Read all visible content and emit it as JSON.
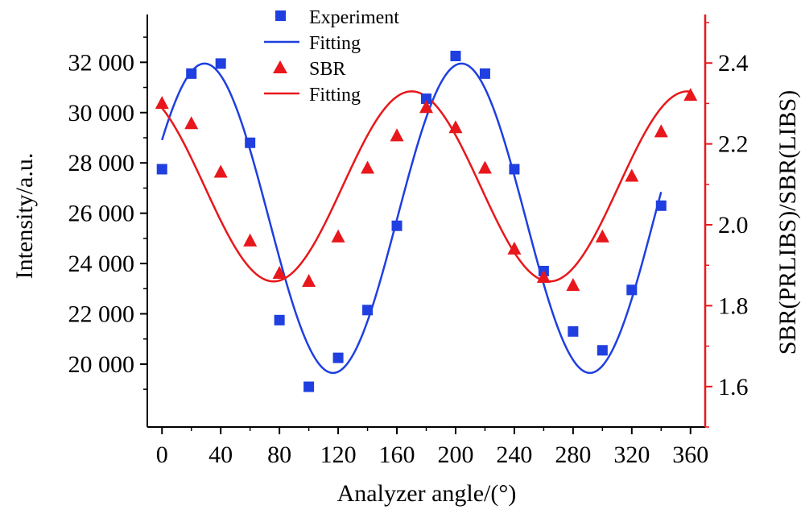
{
  "chart_data": {
    "type": "scatter",
    "xlabel": "Analyzer angle/(°)",
    "ylabel_left": "Intensity/a.u.",
    "ylabel_right": "SBR(PRLIBS)/SBR(LIBS)",
    "xlim": [
      -10,
      370
    ],
    "ylim_left": [
      17500,
      33900
    ],
    "ylim_right": [
      1.5,
      2.52
    ],
    "x_ticks": [
      0,
      40,
      80,
      120,
      160,
      200,
      240,
      280,
      320,
      360
    ],
    "x_tick_labels": [
      "0",
      "40",
      "80",
      "120",
      "160",
      "200",
      "240",
      "280",
      "320",
      "360"
    ],
    "y_left_ticks": [
      20000,
      22000,
      24000,
      26000,
      28000,
      30000,
      32000
    ],
    "y_left_tick_labels": [
      "20 000",
      "22 000",
      "24 000",
      "26 000",
      "28 000",
      "30 000",
      "32 000"
    ],
    "y_right_ticks": [
      1.6,
      1.8,
      2.0,
      2.2,
      2.4
    ],
    "y_right_tick_labels": [
      "1.6",
      "1.8",
      "2.0",
      "2.2",
      "2.4"
    ],
    "legend_position": "top-center",
    "legend": [
      {
        "label": "Experiment",
        "marker": "square",
        "color": "#1f3fe0"
      },
      {
        "label": "Fitting",
        "marker": "line",
        "color": "#1f3fe0"
      },
      {
        "label": "SBR",
        "marker": "triangle",
        "color": "#e8171b"
      },
      {
        "label": "Fitting",
        "marker": "line",
        "color": "#e8171b"
      }
    ],
    "series": [
      {
        "name": "Experiment",
        "axis": "left",
        "kind": "points",
        "marker": "square",
        "color": "#1f3fe0",
        "x": [
          0,
          20,
          40,
          60,
          80,
          100,
          120,
          140,
          160,
          180,
          200,
          220,
          240,
          260,
          280,
          300,
          320,
          340
        ],
        "y": [
          27750,
          31550,
          31950,
          28800,
          21750,
          19100,
          20250,
          22150,
          25500,
          30550,
          32250,
          31550,
          27750,
          23700,
          21300,
          20550,
          22950,
          26300
        ]
      },
      {
        "name": "Fitting",
        "axis": "left",
        "kind": "curve",
        "color": "#1f3fe0",
        "x_range": [
          0,
          340
        ],
        "model": {
          "center": 25800,
          "amplitude": 6150,
          "period_deg": 175,
          "phase_peak_deg": 29
        }
      },
      {
        "name": "SBR",
        "axis": "right",
        "kind": "points",
        "marker": "triangle",
        "color": "#e8171b",
        "x": [
          0,
          20,
          40,
          60,
          80,
          100,
          120,
          140,
          160,
          180,
          200,
          220,
          240,
          260,
          280,
          300,
          320,
          340,
          360
        ],
        "y": [
          2.3,
          2.25,
          2.13,
          1.96,
          1.88,
          1.86,
          1.97,
          2.14,
          2.22,
          2.29,
          2.24,
          2.14,
          1.94,
          1.87,
          1.85,
          1.97,
          2.12,
          2.23,
          2.32
        ]
      },
      {
        "name": "Fitting",
        "axis": "right",
        "kind": "curve",
        "color": "#e8171b",
        "x_range": [
          0,
          360
        ],
        "model": {
          "center": 2.095,
          "amplitude": 0.235,
          "period_deg": 188,
          "phase_peak_deg": 170
        }
      }
    ],
    "colors": {
      "left_axis": "#000000",
      "right_axis": "#e8171b"
    }
  }
}
